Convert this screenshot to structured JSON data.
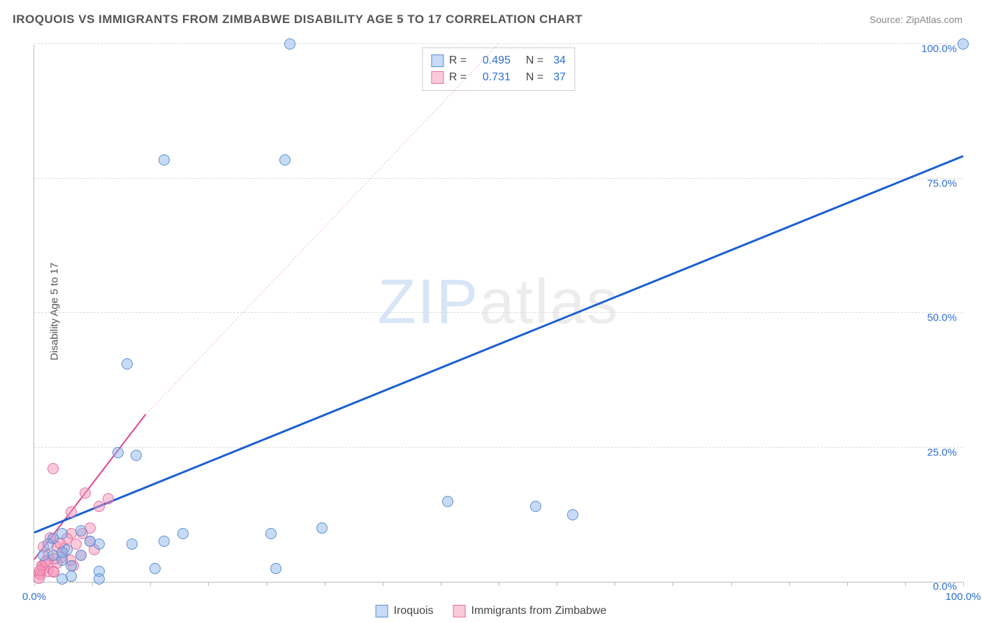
{
  "title": "IROQUOIS VS IMMIGRANTS FROM ZIMBABWE DISABILITY AGE 5 TO 17 CORRELATION CHART",
  "source_prefix": "Source: ",
  "source_name": "ZipAtlas.com",
  "y_axis_label": "Disability Age 5 to 17",
  "watermark_z": "ZIP",
  "watermark_rest": "atlas",
  "chart": {
    "type": "scatter",
    "xlim": [
      0,
      100
    ],
    "ylim": [
      0,
      100
    ],
    "y_ticks": [
      0,
      25,
      50,
      75,
      100
    ],
    "y_tick_labels": [
      "0.0%",
      "25.0%",
      "50.0%",
      "75.0%",
      "100.0%"
    ],
    "x_ticks": [
      0,
      25,
      50,
      75,
      100
    ],
    "x_tick_labels": [
      "0.0%",
      "",
      "",
      "",
      "100.0%"
    ],
    "x_minor_ticks": [
      0,
      6.25,
      12.5,
      18.75,
      25,
      31.25,
      37.5,
      43.75,
      50,
      56.25,
      62.5,
      68.75,
      75,
      81.25,
      87.5,
      93.75,
      100
    ],
    "grid_color": "#dddddd",
    "axis_color": "#bbbbbb",
    "background_color": "#ffffff",
    "tick_label_color": "#2d6fd6",
    "marker_radius": 8,
    "series": [
      {
        "name": "Iroquois",
        "fill": "rgba(130,175,235,0.45)",
        "stroke": "#5a8fd0",
        "trend_color": "#1b5fd0",
        "trend_width": 2.5,
        "trend_dash": "solid",
        "trend_start": [
          0,
          9
        ],
        "trend_end": [
          100,
          79
        ],
        "R": "0.495",
        "N": "34",
        "points": [
          [
            27.5,
            100
          ],
          [
            100,
            100
          ],
          [
            14,
            78.5
          ],
          [
            27,
            78.5
          ],
          [
            10,
            40.5
          ],
          [
            9,
            24
          ],
          [
            11,
            23.5
          ],
          [
            44.5,
            15
          ],
          [
            54,
            14
          ],
          [
            58,
            12.5
          ],
          [
            31,
            10
          ],
          [
            16,
            9
          ],
          [
            25.5,
            9
          ],
          [
            26,
            2.5
          ],
          [
            13,
            2.5
          ],
          [
            7,
            2
          ],
          [
            7,
            0.5
          ],
          [
            4,
            1
          ],
          [
            3,
            0.5
          ],
          [
            5,
            9.5
          ],
          [
            7,
            7
          ],
          [
            6,
            7.5
          ],
          [
            3,
            9
          ],
          [
            3.5,
            6
          ],
          [
            2,
            8
          ],
          [
            2,
            5
          ],
          [
            3,
            4
          ],
          [
            14,
            7.5
          ],
          [
            4,
            3
          ],
          [
            10.5,
            7
          ],
          [
            3,
            5.5
          ],
          [
            5,
            5
          ],
          [
            1.5,
            7
          ],
          [
            1,
            5
          ]
        ]
      },
      {
        "name": "Immigrants from Zimbabwe",
        "fill": "rgba(245,150,185,0.5)",
        "stroke": "#e070a0",
        "trend_color": "#e04090",
        "trend_width": 2,
        "trend_dash": "dashed",
        "trend_start": [
          0,
          4
        ],
        "trend_end": [
          50,
          100
        ],
        "line_end": [
          12,
          31
        ],
        "R": "0.731",
        "N": "37",
        "points": [
          [
            2,
            21
          ],
          [
            5.5,
            16.5
          ],
          [
            8,
            15.5
          ],
          [
            7,
            14
          ],
          [
            6,
            10
          ],
          [
            4,
            13
          ],
          [
            4,
            9
          ],
          [
            6.5,
            6
          ],
          [
            6,
            7.5
          ],
          [
            2,
            8
          ],
          [
            2.5,
            6.5
          ],
          [
            3,
            4.5
          ],
          [
            1.5,
            4
          ],
          [
            2.5,
            3.5
          ],
          [
            0.8,
            3
          ],
          [
            1,
            2.5
          ],
          [
            1.5,
            2
          ],
          [
            2,
            2
          ],
          [
            0.5,
            1.5
          ],
          [
            0.8,
            2.8
          ],
          [
            1.5,
            5
          ],
          [
            4.5,
            7
          ],
          [
            5,
            5
          ],
          [
            3.5,
            8
          ],
          [
            5.2,
            9
          ],
          [
            4.2,
            3
          ],
          [
            1,
            6.5
          ],
          [
            0.7,
            1.3
          ],
          [
            2.2,
            4.3
          ],
          [
            0.5,
            0.6
          ],
          [
            0.6,
            2.1
          ],
          [
            1.2,
            3.8
          ],
          [
            3.2,
            6.2
          ],
          [
            3.9,
            4
          ],
          [
            2.8,
            7.2
          ],
          [
            2.1,
            1.8
          ],
          [
            1.7,
            8.2
          ]
        ]
      }
    ]
  },
  "legend_labels": {
    "R": "R =",
    "N": "N ="
  }
}
